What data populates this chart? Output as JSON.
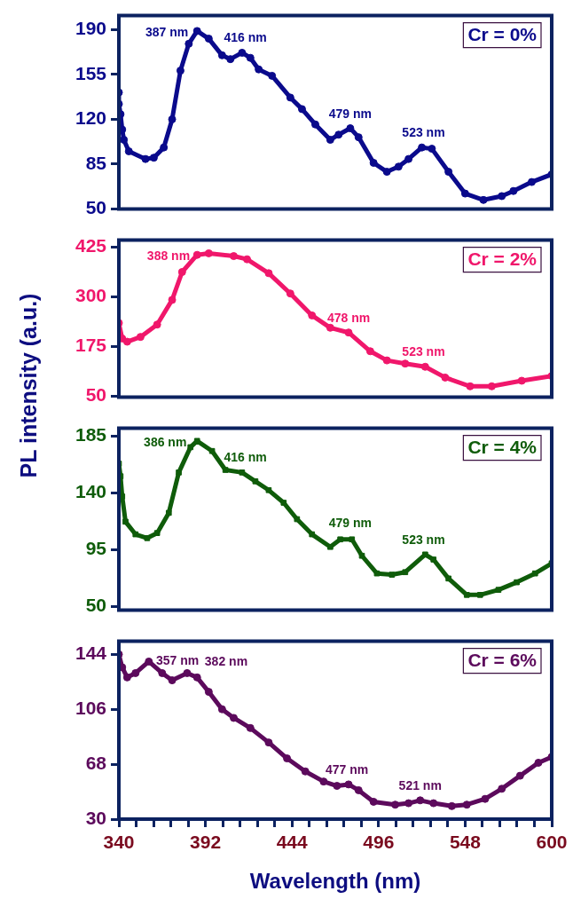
{
  "chart_data": [
    {
      "type": "line",
      "x": [
        340,
        340,
        341,
        342,
        343,
        346,
        356,
        361,
        367,
        372,
        377,
        382,
        387,
        394,
        402,
        407,
        414,
        419,
        424,
        432,
        443,
        450,
        458,
        467,
        472,
        479,
        484,
        493,
        501,
        508,
        514,
        522,
        528,
        538,
        548,
        559,
        570,
        577,
        588,
        600
      ],
      "series": [
        {
          "name": "Cr = 0%",
          "color": "#0a0a8c",
          "values": [
            141,
            132,
            124,
            112,
            104,
            95,
            89,
            90,
            98,
            120,
            158,
            179,
            189,
            183,
            170,
            167,
            172,
            168,
            159,
            154,
            137,
            128,
            116,
            104,
            108,
            113,
            106,
            86,
            79,
            83,
            89,
            98,
            97,
            79,
            62,
            57,
            60,
            64,
            71,
            77
          ]
        }
      ],
      "marker": "circle",
      "legend": "top right",
      "grid": false,
      "tick_labels": "y",
      "xlim": [
        340,
        600
      ],
      "ylim": [
        50,
        201
      ],
      "yticks": [
        50,
        85,
        120,
        155,
        190
      ],
      "annotations": [
        {
          "text": "387 nm",
          "x": 387,
          "y": 189
        },
        {
          "text": "416 nm",
          "x": 416,
          "y": 172
        },
        {
          "text": "479 nm",
          "x": 479,
          "y": 113
        },
        {
          "text": "523 nm",
          "x": 523,
          "y": 98
        }
      ]
    },
    {
      "type": "line",
      "x": [
        340,
        342,
        345,
        353,
        363,
        372,
        378,
        387,
        394,
        409,
        417,
        430,
        443,
        456,
        467,
        478,
        491,
        501,
        512,
        524,
        536,
        551,
        564,
        582,
        600
      ],
      "series": [
        {
          "name": "Cr = 2%",
          "color": "#f0176b",
          "values": [
            234,
            195,
            187,
            199,
            230,
            292,
            362,
            405,
            409,
            402,
            394,
            359,
            308,
            253,
            222,
            210,
            163,
            140,
            132,
            124,
            97,
            75,
            75,
            89,
            101
          ]
        }
      ],
      "marker": "circle",
      "legend": "top right",
      "grid": false,
      "tick_labels": "y",
      "ylabel": "PL intensity (a.u.)",
      "xlim": [
        340,
        600
      ],
      "ylim": [
        48,
        442
      ],
      "yticks": [
        50,
        175,
        300,
        425
      ],
      "annotations": [
        {
          "text": "388 nm",
          "x": 388,
          "y": 406
        },
        {
          "text": "478 nm",
          "x": 478,
          "y": 210
        },
        {
          "text": "523 nm",
          "x": 523,
          "y": 125
        }
      ]
    },
    {
      "type": "line",
      "x": [
        340,
        341,
        342,
        344,
        350,
        357,
        363,
        370,
        376,
        383,
        387,
        396,
        404,
        414,
        422,
        430,
        439,
        447,
        456,
        467,
        473,
        480,
        486,
        495,
        504,
        512,
        524,
        529,
        538,
        549,
        557,
        568,
        579,
        590,
        600
      ],
      "series": [
        {
          "name": "Cr = 4%",
          "color": "#0f5c0a",
          "values": [
            163,
            153,
            137,
            117,
            107,
            104,
            108,
            124,
            156,
            176,
            181,
            173,
            158,
            156,
            149,
            142,
            132,
            119,
            107,
            97,
            103,
            103,
            90,
            76,
            75,
            77,
            91,
            87,
            72,
            59,
            59,
            63,
            69,
            76,
            84
          ]
        }
      ],
      "marker": "square",
      "legend": "top right",
      "grid": false,
      "tick_labels": "y",
      "xlim": [
        340,
        600
      ],
      "ylim": [
        47,
        191
      ],
      "yticks": [
        50,
        95,
        140,
        185
      ],
      "annotations": [
        {
          "text": "386 nm",
          "x": 386,
          "y": 181
        },
        {
          "text": "416 nm",
          "x": 416,
          "y": 156
        },
        {
          "text": "479 nm",
          "x": 479,
          "y": 104
        },
        {
          "text": "523 nm",
          "x": 523,
          "y": 91
        }
      ]
    },
    {
      "type": "line",
      "x": [
        340,
        342,
        345,
        350,
        358,
        366,
        372,
        381,
        387,
        394,
        402,
        409,
        419,
        430,
        441,
        452,
        463,
        471,
        478,
        484,
        493,
        506,
        514,
        521,
        529,
        540,
        549,
        560,
        570,
        581,
        592,
        600
      ],
      "series": [
        {
          "name": "Cr = 6%",
          "color": "#5c0a5c",
          "values": [
            144,
            135,
            128,
            131,
            139,
            131,
            126,
            131,
            128,
            118,
            106,
            100,
            93,
            83,
            72,
            63,
            56,
            53,
            54,
            50,
            42,
            40,
            41,
            43,
            41,
            39,
            40,
            44,
            51,
            60,
            69,
            73
          ]
        }
      ],
      "marker": "circle",
      "legend": "top right",
      "grid": false,
      "xlabel": "Wavelength (nm)",
      "xlim": [
        340,
        600
      ],
      "ylim": [
        30,
        153
      ],
      "yticks": [
        30,
        68,
        106,
        144
      ],
      "xticks": [
        340,
        {
          "value": 350.4,
          "label": null
        },
        {
          "value": 360.8,
          "label": null
        },
        {
          "value": 371.2,
          "label": null
        },
        {
          "value": 381.6,
          "label": null
        },
        392,
        {
          "value": 402.4,
          "label": null
        },
        {
          "value": 412.8,
          "label": null
        },
        {
          "value": 423.2,
          "label": null
        },
        {
          "value": 433.6,
          "label": null
        },
        444,
        {
          "value": 454.4,
          "label": null
        },
        {
          "value": 464.8,
          "label": null
        },
        {
          "value": 475.2,
          "label": null
        },
        {
          "value": 485.6,
          "label": null
        },
        496,
        {
          "value": 506.4,
          "label": null
        },
        {
          "value": 516.8,
          "label": null
        },
        {
          "value": 527.2,
          "label": null
        },
        {
          "value": 537.6,
          "label": null
        },
        548,
        {
          "value": 558.4,
          "label": null
        },
        {
          "value": 568.8,
          "label": null
        },
        {
          "value": 579.2,
          "label": null
        },
        {
          "value": 589.6,
          "label": null
        },
        600
      ],
      "annotations": [
        {
          "text": "357 nm",
          "x": 357,
          "y": 139
        },
        {
          "text": "382 nm",
          "x": 382,
          "y": 131
        },
        {
          "text": "477 nm",
          "x": 477,
          "y": 54
        },
        {
          "text": "521 nm",
          "x": 521,
          "y": 43
        }
      ]
    }
  ]
}
